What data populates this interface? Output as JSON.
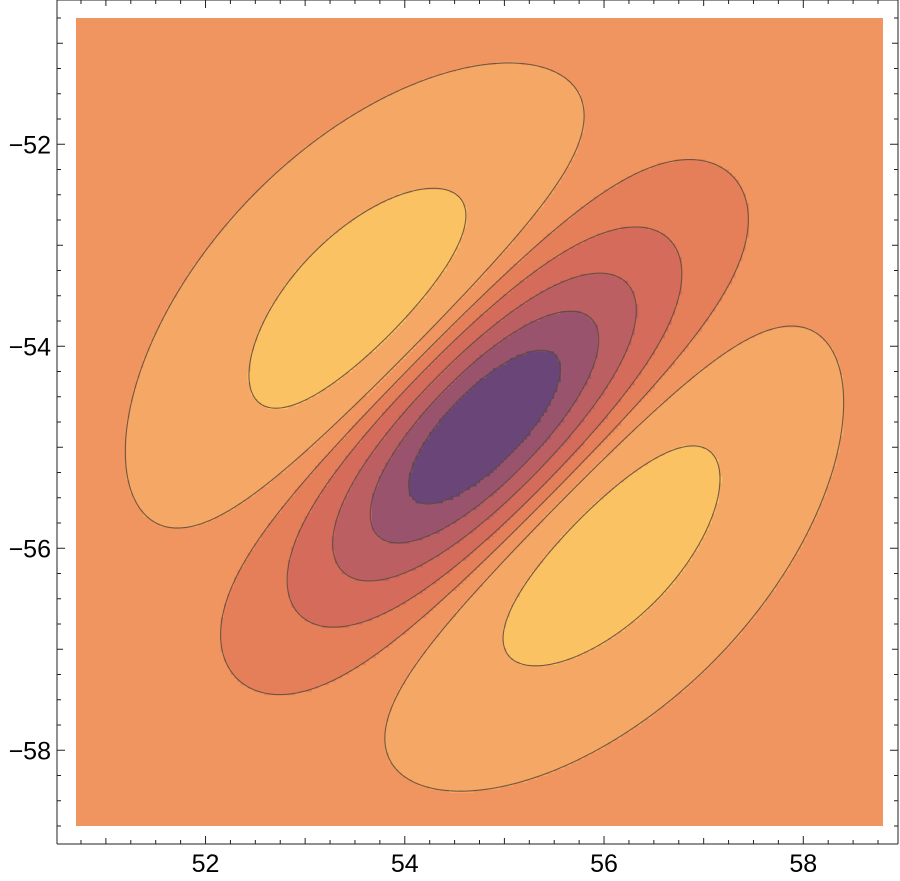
{
  "chart_data": {
    "type": "contour",
    "title": "",
    "xlabel": "",
    "ylabel": "",
    "xlim": [
      50.7,
      58.8
    ],
    "ylim": [
      -58.75,
      -50.75
    ],
    "x_ticks": [
      52,
      54,
      56,
      58
    ],
    "x_tick_labels": [
      "52",
      "54",
      "56",
      "58"
    ],
    "y_ticks": [
      -52,
      -54,
      -56,
      -58
    ],
    "y_tick_labels": [
      "−52",
      "−54",
      "−56",
      "−58"
    ],
    "field": {
      "center": [
        54.8,
        -54.8
      ],
      "components": [
        {
          "sign": 1,
          "center": [
            53.55,
            -53.6
          ],
          "amplitude": 1.0
        },
        {
          "sign": -1,
          "center": [
            54.8,
            -54.8
          ],
          "amplitude": 1.3
        },
        {
          "sign": 1,
          "center": [
            56.05,
            -56.0
          ],
          "amplitude": 1.0
        }
      ]
    },
    "contour_levels": [
      -1.05,
      -0.85,
      -0.65,
      -0.45,
      -0.25,
      -0.08,
      0.08,
      0.35,
      0.6,
      0.82
    ],
    "background_level": 0,
    "colors": {
      "background": "#f0955f",
      "levels": [
        "#2d3b82",
        "#6a4678",
        "#9a536c",
        "#bb5f63",
        "#d46b5b",
        "#e57f5a",
        "#f0955f",
        "#f5a865",
        "#fbc263",
        "#fdd68c",
        "#fff5c8"
      ],
      "contour_line": "#5a4a3a"
    }
  }
}
